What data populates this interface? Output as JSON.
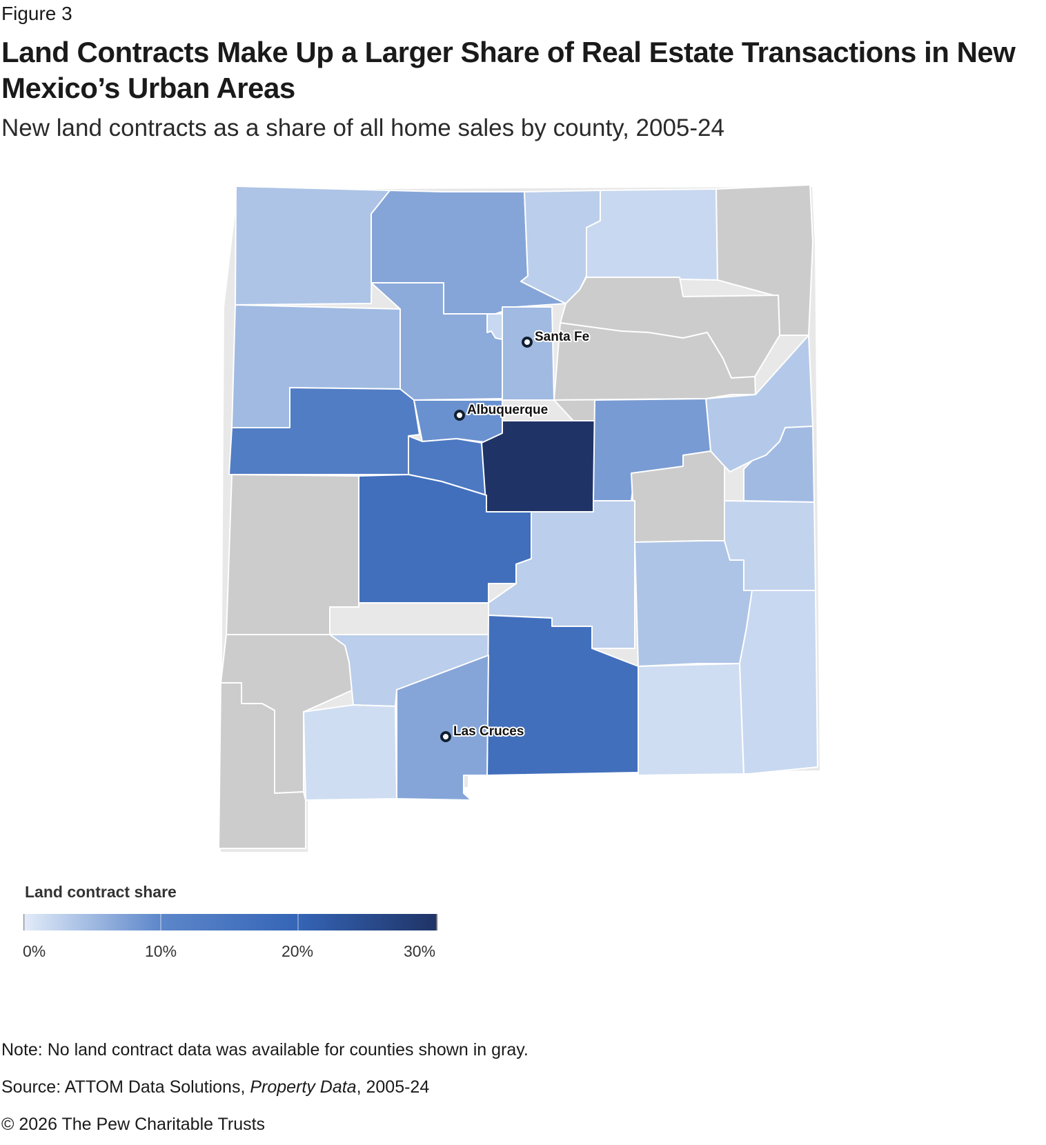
{
  "figure_label": "Figure 3",
  "title": "Land Contracts Make Up a Larger Share of Real Estate Transactions in New Mexico’s Urban Areas",
  "subtitle": "New land contracts as a share of all home sales by county, 2005-24",
  "chart_data": {
    "type": "choropleth",
    "region": "New Mexico counties",
    "value_label": "Land contract share",
    "no_data_color": "#cccccc",
    "color_scale": {
      "stops": [
        "#e3ecf9",
        "#5d87ca",
        "#3565b6",
        "#1f3366"
      ],
      "domain": [
        0,
        30
      ],
      "ticks": [
        "0%",
        "10%",
        "20%",
        "30%"
      ]
    },
    "cities": [
      {
        "name": "Santa Fe"
      },
      {
        "name": "Albuquerque"
      },
      {
        "name": "Las Cruces"
      }
    ],
    "counties": [
      {
        "id": "nw-corner",
        "value": 4
      },
      {
        "id": "north-central-1",
        "value": 7
      },
      {
        "id": "north-central-2",
        "value": 3
      },
      {
        "id": "north-central-3",
        "value": 2
      },
      {
        "id": "ne-corner",
        "value": null
      },
      {
        "id": "north-east-2",
        "value": null
      },
      {
        "id": "north-east-3",
        "value": null
      },
      {
        "id": "west-1",
        "value": 5
      },
      {
        "id": "central-north",
        "value": 6.5
      },
      {
        "id": "los-alamos",
        "value": 2
      },
      {
        "id": "santa-fe",
        "value": 5
      },
      {
        "id": "east-central-gray",
        "value": null
      },
      {
        "id": "east-1",
        "value": 3.5
      },
      {
        "id": "east-2",
        "value": 5
      },
      {
        "id": "cibola",
        "value": 13
      },
      {
        "id": "bernalillo",
        "value": 9
      },
      {
        "id": "valencia",
        "value": 14
      },
      {
        "id": "torrance",
        "value": 30
      },
      {
        "id": "guadalupe",
        "value": 8
      },
      {
        "id": "debaca-gray",
        "value": null
      },
      {
        "id": "catron-gray",
        "value": null
      },
      {
        "id": "socorro",
        "value": 17
      },
      {
        "id": "lincoln",
        "value": 3
      },
      {
        "id": "chaves",
        "value": 4
      },
      {
        "id": "roosevelt",
        "value": 2.5
      },
      {
        "id": "grant-gray",
        "value": null
      },
      {
        "id": "sierra",
        "value": 3
      },
      {
        "id": "otero",
        "value": 17
      },
      {
        "id": "dona-ana",
        "value": 7
      },
      {
        "id": "luna",
        "value": 1.5
      },
      {
        "id": "hidalgo-gray",
        "value": null
      },
      {
        "id": "eddy",
        "value": 1.5
      },
      {
        "id": "lea",
        "value": 2
      }
    ]
  },
  "legend": {
    "title": "Land contract share",
    "ticks": [
      "0%",
      "10%",
      "20%",
      "30%"
    ]
  },
  "footer": {
    "note": "Note: No land contract data was available for counties shown in gray.",
    "source_prefix": "Source: ATTOM Data Solutions, ",
    "source_italic": "Property Data",
    "source_suffix": ", 2005-24",
    "copyright": "© 2026 The Pew Charitable Trusts"
  }
}
